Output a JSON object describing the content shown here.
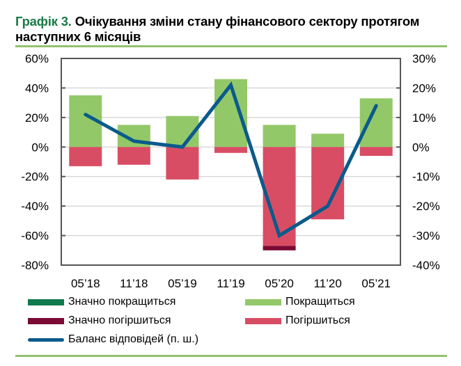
{
  "title": {
    "number": "Графік 3.",
    "text": "Очікування зміни стану фінансового сектору протягом наступних 6 місяців"
  },
  "colors": {
    "significant_improve": "#0f7a4e",
    "improve": "#93c869",
    "significant_worsen": "#7a0a34",
    "worsen": "#d94d64",
    "balance": "#0b5a8c",
    "rule": "#93c16e",
    "title_accent": "#1a7a48"
  },
  "legend": [
    {
      "key": "significant_improve",
      "label": "Значно покращиться"
    },
    {
      "key": "improve",
      "label": "Покращиться"
    },
    {
      "key": "significant_worsen",
      "label": "Значно погіршиться"
    },
    {
      "key": "worsen",
      "label": "Погіршиться"
    },
    {
      "key": "balance",
      "label": "Баланс відповідей (п. ш.)"
    }
  ],
  "chart_data": {
    "type": "bar",
    "title": "Очікування зміни стану фінансового сектору протягом наступних 6 місяців",
    "categories": [
      "05’18",
      "11’18",
      "05’19",
      "11’19",
      "05’20",
      "11’20",
      "05’21"
    ],
    "series": [
      {
        "name": "Значно покращиться",
        "type": "bar",
        "axis": "left",
        "values": [
          0,
          0,
          0,
          0,
          0,
          0,
          0
        ]
      },
      {
        "name": "Покращиться",
        "type": "bar",
        "axis": "left",
        "values": [
          35,
          15,
          21,
          46,
          15,
          9,
          33
        ]
      },
      {
        "name": "Значно погіршиться",
        "type": "bar",
        "axis": "left",
        "values": [
          0,
          0,
          0,
          0,
          -3,
          0,
          0
        ]
      },
      {
        "name": "Погіршиться",
        "type": "bar",
        "axis": "left",
        "values": [
          -13,
          -12,
          -22,
          -4,
          -67,
          -49,
          -6
        ]
      },
      {
        "name": "Баланс відповідей (п. ш.)",
        "type": "line",
        "axis": "right",
        "values": [
          11,
          2,
          0,
          21,
          -30,
          -20,
          14
        ]
      }
    ],
    "left_axis": {
      "ylim": [
        -80,
        60
      ],
      "ticks": [
        "60%",
        "40%",
        "20%",
        "0%",
        "-20%",
        "-40%",
        "-60%",
        "-80%"
      ]
    },
    "right_axis": {
      "ylim": [
        -40,
        30
      ],
      "ticks": [
        "30%",
        "20%",
        "10%",
        "0%",
        "-10%",
        "-20%",
        "-30%",
        "-40%"
      ]
    },
    "xlabel": "",
    "ylabel": "",
    "grid": true,
    "stacked": true,
    "legend_position": "bottom"
  }
}
